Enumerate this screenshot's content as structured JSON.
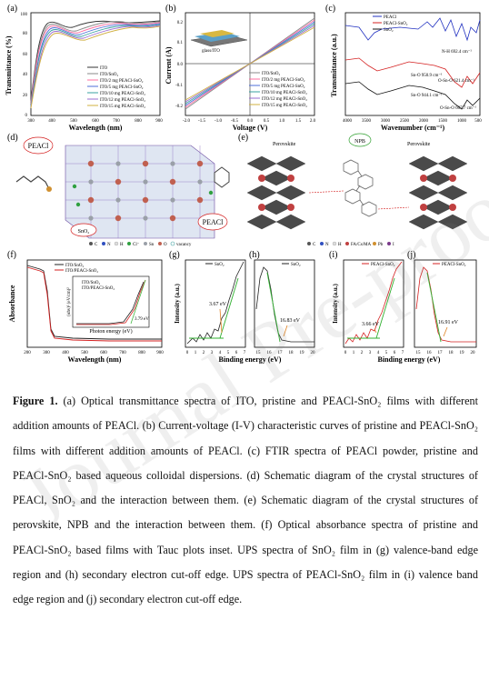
{
  "panels": {
    "a": {
      "letter": "(a)",
      "xlabel": "Wavelength (nm)",
      "ylabel": "Transmittance (%)",
      "xticks": [
        "300",
        "400",
        "500",
        "600",
        "700",
        "800",
        "900"
      ],
      "yticks": [
        "0",
        "20",
        "40",
        "60",
        "80",
        "100"
      ],
      "legend": [
        "ITO",
        "ITO/SnO₂",
        "ITO/2 mg PEACl-SnO₂",
        "ITO/5 mg PEACl-SnO₂",
        "ITO/10 mg PEACl-SnO₂",
        "ITO/12 mg PEACl-SnO₂",
        "ITO/15 mg PEACl-SnO₂"
      ]
    },
    "b": {
      "letter": "(b)",
      "xlabel": "Voltage (V)",
      "ylabel": "Current (A)",
      "xticks": [
        "-2.0",
        "-1.5",
        "-1.0",
        "-0.5",
        "0.0",
        "0.5",
        "1.0",
        "1.5",
        "2.0"
      ],
      "yticks": [
        "0.2",
        "0.1",
        "0.0",
        "-0.1",
        "-0.2"
      ],
      "legend": [
        "ITO/SnO₂",
        "ITO/2 mg PEACl-SnO₂",
        "ITO/5 mg PEACl-SnO₂",
        "ITO/10 mg PEACl-SnO₂",
        "ITO/12 mg PEACl-SnO₂",
        "ITO/15 mg PEACl-SnO₂"
      ],
      "inset_label": "glass/ITO"
    },
    "c": {
      "letter": "(c)",
      "xlabel": "Wavenumber (cm⁻¹)",
      "ylabel": "Transmittance (a.u.)",
      "xticks": [
        "4000",
        "3500",
        "3000",
        "2500",
        "2000",
        "1500",
        "1000",
        "500"
      ],
      "legend": [
        "PEACl",
        "PEACl-SnO₂",
        "SnO₂"
      ],
      "annotations": [
        "N-H 692.4 cm⁻¹",
        "Sn-O 950.9 cm⁻¹",
        "O-Sn-O 621.4 cm⁻¹",
        "Sn-O 944.1 cm⁻¹",
        "O-Sn-O 607.7 cm⁻¹"
      ]
    },
    "d": {
      "letter": "(d)",
      "labels": [
        "PEACl",
        "SnO₂",
        "PEACl"
      ],
      "legend": [
        "C",
        "N",
        "H",
        "Cl⁻",
        "Sn",
        "O",
        "vacancy"
      ]
    },
    "e": {
      "letter": "(e)",
      "labels": [
        "Perovskite",
        "NPB",
        "Perovskite"
      ],
      "legend": [
        "C",
        "N",
        "H",
        "FA/Cs/MA",
        "Pb",
        "I"
      ]
    },
    "f": {
      "letter": "(f)",
      "xlabel": "Wavelength (nm)",
      "ylabel": "Absorbance",
      "xticks": [
        "200",
        "300",
        "400",
        "500",
        "600",
        "700",
        "800",
        "900"
      ],
      "legend": [
        "ITO/SnO₂",
        "ITO/PEACl-SnO₂"
      ],
      "inset_xlabel": "Photon energy (eV)",
      "inset_ylabel": "(αhν)² (eV/cm)²",
      "inset_legend": [
        "ITO/SnO₂",
        "ITO/PEACl-SnO₂"
      ],
      "inset_value": "3.79 eV"
    },
    "g": {
      "letter": "(g)",
      "ylabel": "Intensity (a.u.)",
      "legend": "SnO₂",
      "value": "3.67 eV",
      "xticks": [
        "0",
        "1",
        "2",
        "3",
        "4",
        "5",
        "6",
        "7"
      ]
    },
    "h": {
      "letter": "(h)",
      "legend": "SnO₂",
      "value": "16.83 eV",
      "xticks": [
        "15",
        "16",
        "17",
        "18",
        "19",
        "20"
      ]
    },
    "i": {
      "letter": "(i)",
      "ylabel": "Intensity (a.u.)",
      "legend": "PEACl-SnO₂",
      "value": "3.66 eV",
      "xticks": [
        "0",
        "1",
        "2",
        "3",
        "4",
        "5",
        "6",
        "7"
      ]
    },
    "j": {
      "letter": "(j)",
      "legend": "PEACl-SnO₂",
      "value": "16.91 eV",
      "xticks": [
        "15",
        "16",
        "17",
        "18",
        "19",
        "20"
      ]
    },
    "shared_xlabel": "Binding energy (eV)"
  },
  "caption": {
    "lead": "Figure 1.",
    "text": " (a) Optical transmittance spectra of ITO, pristine and PEACl-SnO₂ films with different addition amounts of PEACl. (b) Current-voltage (I-V) characteristic curves of pristine and PEACl-SnO₂ films with different addition amounts of PEACl. (c) FTIR spectra of PEACl powder, pristine and PEACl-SnO₂ based aqueous colloidal dispersions. (d) Schematic diagram of the crystal structures of PEACl, SnO₂ and the interaction between them. (e) Schematic diagram of the crystal structures of perovskite, NPB and the interaction between them. (f) Optical absorbance spectra of pristine and PEACl-SnO₂ based films with Tauc plots inset. UPS spectra of SnO₂ film in (g) valence-band edge region and (h) secondary electron cut-off edge. UPS spectra of PEACl-SnO₂ film in (i) valence band edge region and (j) secondary electron cut-off edge."
  },
  "watermark": "Journal Pre-proof",
  "colors": {
    "ito": "#333333",
    "sno2": "#888888",
    "c2": "#ff6fa0",
    "c5": "#4f6fd8",
    "c10": "#3aa0a0",
    "c12": "#9a6cd0",
    "c15": "#d0b040",
    "red": "#d42020",
    "blue": "#2030c0",
    "green": "#30b030"
  }
}
